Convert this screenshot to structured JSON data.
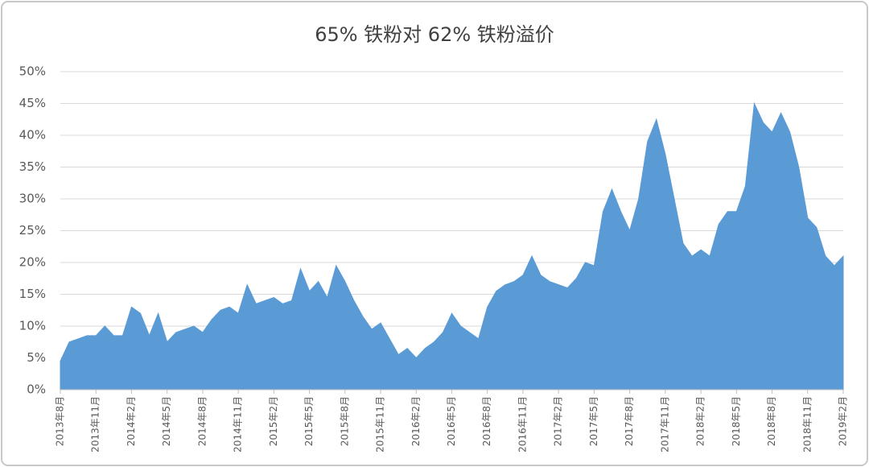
{
  "chart_data": {
    "type": "area",
    "title": "65% 铁粉对 62% 铁粉溢价",
    "categories": [
      "2013年8月",
      null,
      null,
      null,
      "2013年11月",
      null,
      null,
      null,
      "2014年2月",
      null,
      null,
      null,
      "2014年5月",
      null,
      null,
      null,
      "2014年8月",
      null,
      null,
      null,
      "2014年11月",
      null,
      null,
      null,
      "2015年2月",
      null,
      null,
      null,
      "2015年5月",
      null,
      null,
      null,
      "2015年8月",
      null,
      null,
      null,
      "2015年11月",
      null,
      null,
      null,
      "2016年2月",
      null,
      null,
      null,
      "2016年5月",
      null,
      null,
      null,
      "2016年8月",
      null,
      null,
      null,
      "2016年11月",
      null,
      null,
      null,
      "2017年2月",
      null,
      null,
      null,
      "2017年5月",
      null,
      null,
      null,
      "2017年8月",
      null,
      null,
      null,
      "2017年11月",
      null,
      null,
      null,
      "2018年2月",
      null,
      null,
      null,
      "2018年5月",
      null,
      null,
      null,
      "2018年8月",
      null,
      null,
      null,
      "2018年11月",
      null,
      null,
      null,
      "2019年2月"
    ],
    "series": [
      {
        "name": "溢价",
        "color": "#5b9bd5",
        "values": [
          4.5,
          7.5,
          8,
          8.5,
          8.5,
          10,
          8.5,
          8.5,
          13,
          12,
          8.5,
          12,
          7.5,
          9,
          9.5,
          10,
          9,
          11,
          12.5,
          13,
          12,
          16.5,
          13.5,
          14,
          14.5,
          13.5,
          14,
          19,
          15.5,
          17,
          14.5,
          19.5,
          17,
          14,
          11.5,
          9.5,
          10.5,
          8,
          5.5,
          6.5,
          5,
          6.5,
          7.5,
          9,
          12,
          10,
          9,
          8,
          13,
          15.5,
          16.5,
          17,
          18,
          21,
          18,
          17,
          16.5,
          16,
          17.5,
          20,
          19.5,
          28,
          31.5,
          28,
          25,
          30,
          39,
          42.5,
          37,
          30,
          23,
          21,
          22,
          21,
          26,
          28,
          28,
          32,
          45,
          42,
          40.5,
          43.5,
          40.5,
          35,
          27,
          25.5,
          21,
          19.5,
          21
        ]
      }
    ],
    "ylim": [
      0,
      50
    ],
    "yticks": [
      {
        "value": 0,
        "label": "0%"
      },
      {
        "value": 5,
        "label": "5%"
      },
      {
        "value": 10,
        "label": "10%"
      },
      {
        "value": 15,
        "label": "15%"
      },
      {
        "value": 20,
        "label": "20%"
      },
      {
        "value": 25,
        "label": "25%"
      },
      {
        "value": 30,
        "label": "30%"
      },
      {
        "value": 35,
        "label": "35%"
      },
      {
        "value": 40,
        "label": "40%"
      },
      {
        "value": 45,
        "label": "45%"
      },
      {
        "value": 50,
        "label": "50%"
      }
    ],
    "grid": true
  }
}
